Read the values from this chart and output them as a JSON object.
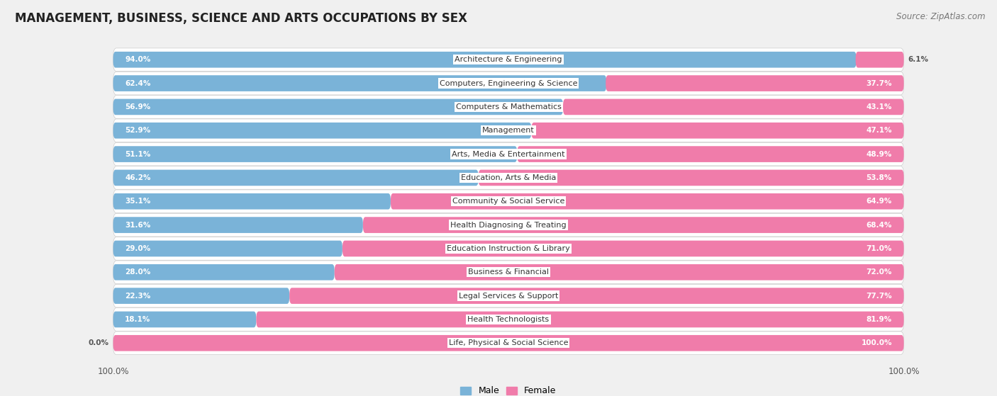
{
  "title": "MANAGEMENT, BUSINESS, SCIENCE AND ARTS OCCUPATIONS BY SEX",
  "source": "Source: ZipAtlas.com",
  "categories": [
    "Architecture & Engineering",
    "Computers, Engineering & Science",
    "Computers & Mathematics",
    "Management",
    "Arts, Media & Entertainment",
    "Education, Arts & Media",
    "Community & Social Service",
    "Health Diagnosing & Treating",
    "Education Instruction & Library",
    "Business & Financial",
    "Legal Services & Support",
    "Health Technologists",
    "Life, Physical & Social Science"
  ],
  "male_pct": [
    94.0,
    62.4,
    56.9,
    52.9,
    51.1,
    46.2,
    35.1,
    31.6,
    29.0,
    28.0,
    22.3,
    18.1,
    0.0
  ],
  "female_pct": [
    6.1,
    37.7,
    43.1,
    47.1,
    48.9,
    53.8,
    64.9,
    68.4,
    71.0,
    72.0,
    77.7,
    81.9,
    100.0
  ],
  "male_color": "#7ab3d8",
  "female_color": "#f07caa",
  "bg_color": "#f0f0f0",
  "bar_bg_color": "#ffffff",
  "row_bg_color": "#e8e8e8",
  "title_fontsize": 12,
  "source_fontsize": 8.5,
  "label_fontsize": 8,
  "bar_label_fontsize": 7.5,
  "legend_fontsize": 9
}
